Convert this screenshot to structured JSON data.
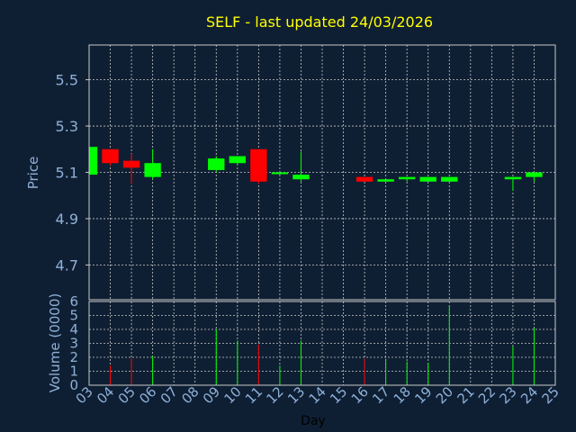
{
  "chart_data": {
    "type": "candlestick",
    "title": "SELF - last updated 24/03/2026",
    "xlabel": "Day",
    "price_panel": {
      "ylabel": "Price",
      "ylim": [
        4.55,
        5.65
      ],
      "yticks": [
        "5.5",
        "5.3",
        "5.1",
        "4.9",
        "4.7"
      ],
      "ytick_values": [
        5.5,
        5.3,
        5.1,
        4.9,
        4.7
      ],
      "grid": true
    },
    "volume_panel": {
      "ylabel": "Volume (0000)",
      "ylim": [
        0,
        6
      ],
      "yticks": [
        "6",
        "5",
        "4",
        "3",
        "2",
        "1",
        "0"
      ],
      "ytick_values": [
        6,
        5,
        4,
        3,
        2,
        1,
        0
      ],
      "grid": true
    },
    "x_ticks": [
      "03",
      "04",
      "05",
      "06",
      "07",
      "08",
      "09",
      "10",
      "11",
      "12",
      "13",
      "14",
      "15",
      "16",
      "17",
      "18",
      "19",
      "20",
      "21",
      "22",
      "23",
      "24",
      "25"
    ],
    "colors": {
      "up": "#00ff00",
      "down": "#ff0000",
      "background": "#0f1f33",
      "grid": "#c8c8c8",
      "axis_text": "#8fb0d8",
      "title": "#ffff00"
    },
    "candles": [
      {
        "day": "03",
        "open": 5.09,
        "high": 5.21,
        "low": 5.09,
        "close": 5.21,
        "volume": 0
      },
      {
        "day": "04",
        "open": 5.2,
        "high": 5.2,
        "low": 5.13,
        "close": 5.14,
        "volume": 1.4
      },
      {
        "day": "05",
        "open": 5.15,
        "high": 5.18,
        "low": 5.05,
        "close": 5.12,
        "volume": 1.9
      },
      {
        "day": "06",
        "open": 5.08,
        "high": 5.2,
        "low": 5.07,
        "close": 5.14,
        "volume": 2.1
      },
      {
        "day": "09",
        "open": 5.11,
        "high": 5.17,
        "low": 5.1,
        "close": 5.16,
        "volume": 4.0
      },
      {
        "day": "10",
        "open": 5.14,
        "high": 5.17,
        "low": 5.13,
        "close": 5.17,
        "volume": 3.2
      },
      {
        "day": "11",
        "open": 5.2,
        "high": 5.2,
        "low": 5.05,
        "close": 5.06,
        "volume": 2.9
      },
      {
        "day": "12",
        "open": 5.1,
        "high": 5.1,
        "low": 5.09,
        "close": 5.1,
        "volume": 1.4
      },
      {
        "day": "13",
        "open": 5.07,
        "high": 5.19,
        "low": 5.06,
        "close": 5.09,
        "volume": 3.2
      },
      {
        "day": "16",
        "open": 5.08,
        "high": 5.08,
        "low": 5.06,
        "close": 5.06,
        "volume": 1.9
      },
      {
        "day": "17",
        "open": 5.06,
        "high": 5.07,
        "low": 5.06,
        "close": 5.07,
        "volume": 1.9
      },
      {
        "day": "18",
        "open": 5.07,
        "high": 5.08,
        "low": 5.06,
        "close": 5.08,
        "volume": 1.7
      },
      {
        "day": "19",
        "open": 5.06,
        "high": 5.08,
        "low": 5.06,
        "close": 5.08,
        "volume": 1.6
      },
      {
        "day": "20",
        "open": 5.06,
        "high": 5.08,
        "low": 5.06,
        "close": 5.08,
        "volume": 5.7
      },
      {
        "day": "23",
        "open": 5.07,
        "high": 5.08,
        "low": 5.02,
        "close": 5.08,
        "volume": 2.8
      },
      {
        "day": "24",
        "open": 5.08,
        "high": 5.1,
        "low": 5.06,
        "close": 5.1,
        "volume": 4.1
      }
    ]
  }
}
